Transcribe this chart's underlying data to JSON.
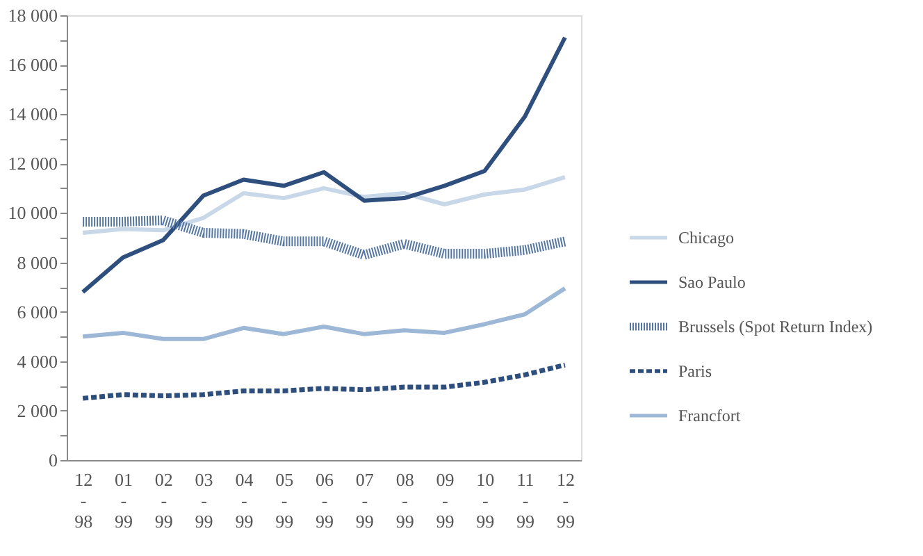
{
  "chart_data": {
    "type": "line",
    "categories": [
      "12-98",
      "01-99",
      "02-99",
      "03-99",
      "04-99",
      "05-99",
      "06-99",
      "07-99",
      "08-99",
      "09-99",
      "10-99",
      "11-99",
      "12-99"
    ],
    "series": [
      {
        "name": "Chicago",
        "color": "#c8d8e8",
        "line_style": "solid",
        "values": [
          9200,
          9350,
          9300,
          9800,
          10800,
          10600,
          11000,
          10650,
          10800,
          10350,
          10750,
          10950,
          11450
        ]
      },
      {
        "name": "Sao Paulo",
        "color": "#2e4f7e",
        "line_style": "solid",
        "values": [
          6800,
          8200,
          8900,
          10700,
          11350,
          11100,
          11650,
          10500,
          10600,
          11100,
          11700,
          13900,
          17100
        ]
      },
      {
        "name": "Brussels (Spot Return Index)",
        "color": "#5577a3",
        "line_style": "dotted",
        "values": [
          9650,
          9650,
          9700,
          9200,
          9150,
          8850,
          8850,
          8300,
          8750,
          8350,
          8350,
          8500,
          8850
        ]
      },
      {
        "name": "Paris",
        "color": "#2e4f7e",
        "line_style": "dashed",
        "values": [
          2500,
          2650,
          2600,
          2650,
          2800,
          2800,
          2900,
          2850,
          2950,
          2950,
          3150,
          3450,
          3850
        ]
      },
      {
        "name": "Francfort",
        "color": "#9db8d6",
        "line_style": "solid",
        "values": [
          5000,
          5150,
          4900,
          4900,
          5350,
          5100,
          5400,
          5100,
          5250,
          5150,
          5500,
          5900,
          6950
        ]
      }
    ],
    "ylim": [
      0,
      18000
    ],
    "yticks": [
      0,
      {
        "value": 1000,
        "label": null
      },
      {
        "value": 2000,
        "label": "2 000"
      },
      {
        "value": 3000,
        "label": null
      },
      {
        "value": 4000,
        "label": "4 000"
      },
      {
        "value": 5000,
        "label": null
      },
      {
        "value": 6000,
        "label": "6 000"
      },
      {
        "value": 7000,
        "label": null
      },
      {
        "value": 8000,
        "label": "8 000"
      },
      {
        "value": 9000,
        "label": null
      },
      {
        "value": 10000,
        "label": "10 000"
      },
      {
        "value": 11000,
        "label": null
      },
      {
        "value": 12000,
        "label": "12 000"
      },
      {
        "value": 13000,
        "label": null
      },
      {
        "value": 14000,
        "label": "14 000"
      },
      {
        "value": 15000,
        "label": null
      },
      {
        "value": 16000,
        "label": "16 000"
      },
      {
        "value": 17000,
        "label": null
      },
      {
        "value": 18000,
        "label": "18 000"
      }
    ],
    "grid": false,
    "legend": "right"
  }
}
